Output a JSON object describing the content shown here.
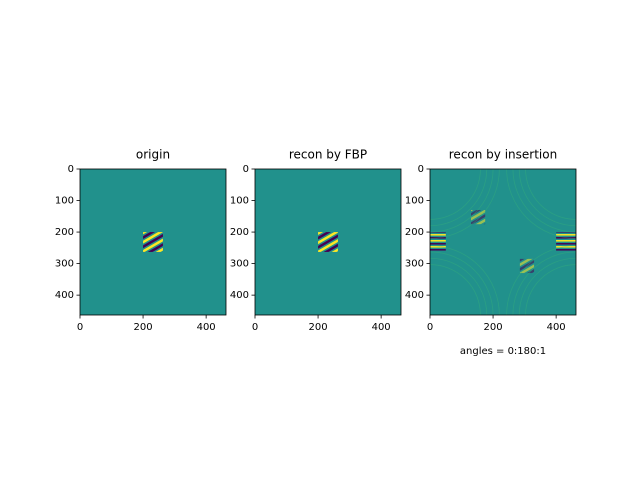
{
  "chart_data": [
    {
      "type": "image",
      "title": "origin",
      "xlim": [
        0,
        463
      ],
      "ylim": [
        463,
        0
      ],
      "xticks": [
        0,
        200,
        400
      ],
      "yticks": [
        0,
        100,
        200,
        300,
        400
      ]
    },
    {
      "type": "image",
      "title": "recon by FBP",
      "xlim": [
        0,
        463
      ],
      "ylim": [
        463,
        0
      ],
      "xticks": [
        0,
        200,
        400
      ],
      "yticks": [
        0,
        100,
        200,
        300,
        400
      ]
    },
    {
      "type": "image",
      "title": "recon by insertion",
      "xlabel": "angles = 0:180:1",
      "xlim": [
        0,
        463
      ],
      "ylim": [
        463,
        0
      ],
      "xticks": [
        0,
        200,
        400
      ],
      "yticks": [
        0,
        100,
        200,
        300,
        400
      ]
    }
  ]
}
